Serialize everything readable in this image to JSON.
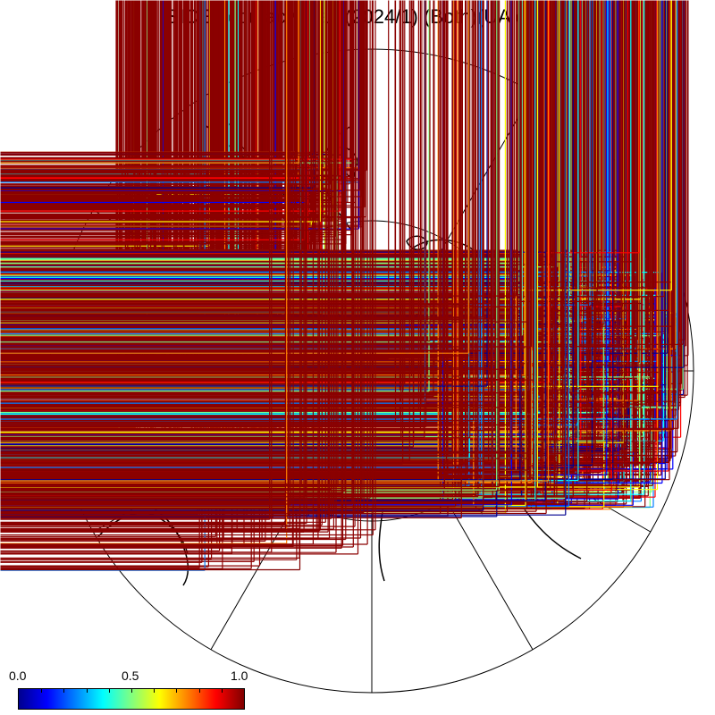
{
  "title": "SICE accuracy map (2024/1) (Both)(UA dry)",
  "colorbar": {
    "min_label": "0.0",
    "mid_label": "0.5",
    "max_label": "1.0",
    "colors": [
      "#00008f",
      "#0000ff",
      "#0080ff",
      "#00ffff",
      "#80ff80",
      "#ffff00",
      "#ff8000",
      "#ff0000",
      "#800000"
    ]
  },
  "map": {
    "projection": "north polar stereographic",
    "meridian_count": 12,
    "inner_circle": true,
    "land_outline_color": "#000000",
    "marker": "+"
  },
  "point_colors": {
    "high_accuracy": "#8b0000",
    "low_accuracy": "#00008b"
  }
}
